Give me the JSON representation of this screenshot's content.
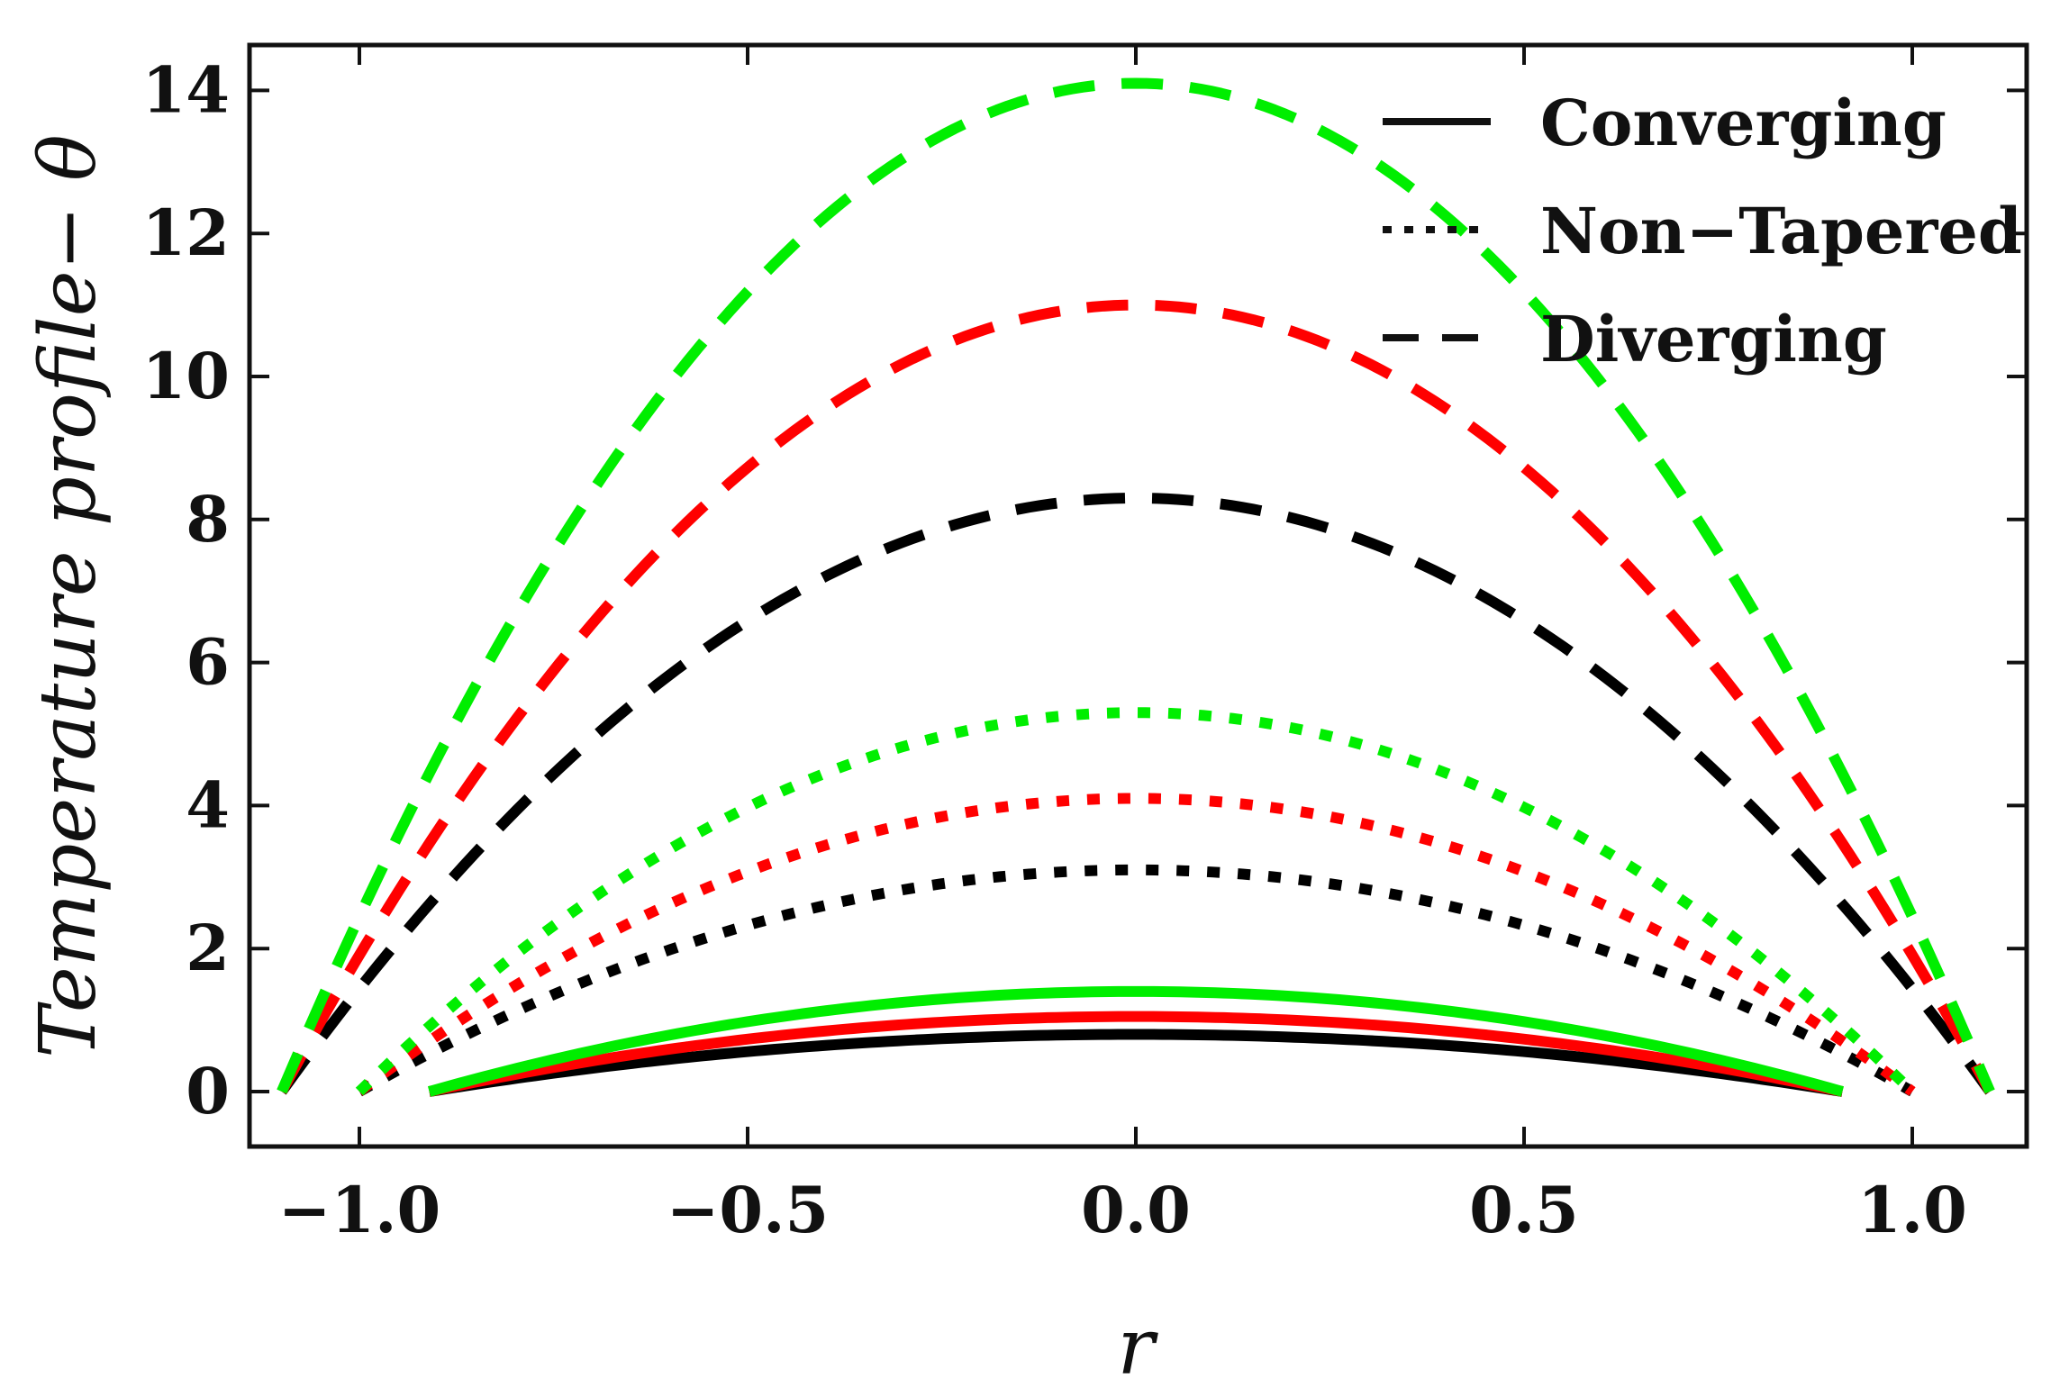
{
  "chart_data": {
    "type": "line",
    "title": "",
    "xlabel": "r",
    "ylabel": "Temperature profile− θ",
    "xlim": [
      -1.15,
      1.15
    ],
    "ylim": [
      -0.8,
      14.8
    ],
    "xticks": [
      -1.0,
      -0.5,
      0.0,
      0.5,
      1.0
    ],
    "xtick_labels": [
      "−1.0",
      "−0.5",
      "0.0",
      "0.5",
      "1.0"
    ],
    "yticks": [
      0,
      2,
      4,
      6,
      8,
      10,
      12,
      14
    ],
    "ytick_labels": [
      "0",
      "2",
      "4",
      "6",
      "8",
      "10",
      "12",
      "14"
    ],
    "legend": {
      "placement": "top-right",
      "entries": [
        {
          "label": "Converging",
          "style": "solid"
        },
        {
          "label": "Non−Tapered",
          "style": "dotted"
        },
        {
          "label": "Diverging",
          "style": "dashed"
        }
      ]
    },
    "series": [
      {
        "name": "Converging-black",
        "style": "solid",
        "color": "#000000",
        "r_max": 0.91,
        "peak": 0.8
      },
      {
        "name": "Converging-red",
        "style": "solid",
        "color": "#ff0000",
        "r_max": 0.91,
        "peak": 1.05
      },
      {
        "name": "Converging-green",
        "style": "solid",
        "color": "#00ee00",
        "r_max": 0.91,
        "peak": 1.4
      },
      {
        "name": "Non-Tapered-black",
        "style": "dotted",
        "color": "#000000",
        "r_max": 1.0,
        "peak": 3.1
      },
      {
        "name": "Non-Tapered-red",
        "style": "dotted",
        "color": "#ff0000",
        "r_max": 1.0,
        "peak": 4.1
      },
      {
        "name": "Non-Tapered-green",
        "style": "dotted",
        "color": "#00ee00",
        "r_max": 1.0,
        "peak": 5.3
      },
      {
        "name": "Diverging-black",
        "style": "dashed",
        "color": "#000000",
        "r_max": 1.1,
        "peak": 8.3
      },
      {
        "name": "Diverging-red",
        "style": "dashed",
        "color": "#ff0000",
        "r_max": 1.1,
        "peak": 11.0
      },
      {
        "name": "Diverging-green",
        "style": "dashed",
        "color": "#00ee00",
        "r_max": 1.1,
        "peak": 14.1
      }
    ]
  }
}
